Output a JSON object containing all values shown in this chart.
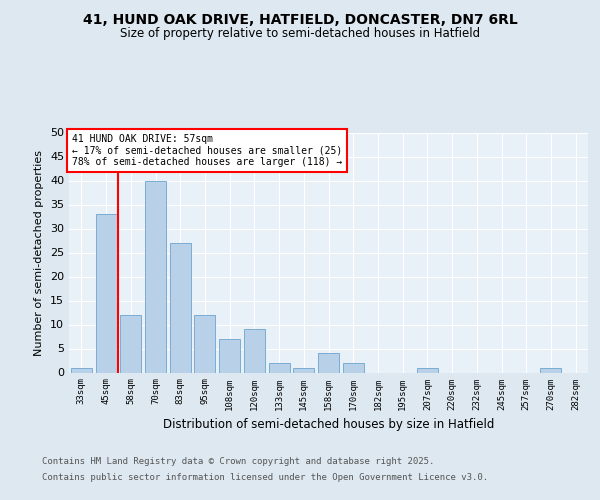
{
  "title_line1": "41, HUND OAK DRIVE, HATFIELD, DONCASTER, DN7 6RL",
  "title_line2": "Size of property relative to semi-detached houses in Hatfield",
  "xlabel": "Distribution of semi-detached houses by size in Hatfield",
  "ylabel": "Number of semi-detached properties",
  "categories": [
    "33sqm",
    "45sqm",
    "58sqm",
    "70sqm",
    "83sqm",
    "95sqm",
    "108sqm",
    "120sqm",
    "133sqm",
    "145sqm",
    "158sqm",
    "170sqm",
    "182sqm",
    "195sqm",
    "207sqm",
    "220sqm",
    "232sqm",
    "245sqm",
    "257sqm",
    "270sqm",
    "282sqm"
  ],
  "values": [
    1,
    33,
    12,
    40,
    27,
    12,
    7,
    9,
    2,
    1,
    4,
    2,
    0,
    0,
    1,
    0,
    0,
    0,
    0,
    1,
    0
  ],
  "bar_color": "#b8d0e8",
  "bar_edge_color": "#7aadd4",
  "annotation_text_line1": "41 HUND OAK DRIVE: 57sqm",
  "annotation_text_line2": "← 17% of semi-detached houses are smaller (25)",
  "annotation_text_line3": "78% of semi-detached houses are larger (118) →",
  "ylim": [
    0,
    50
  ],
  "yticks": [
    0,
    5,
    10,
    15,
    20,
    25,
    30,
    35,
    40,
    45,
    50
  ],
  "footnote_line1": "Contains HM Land Registry data © Crown copyright and database right 2025.",
  "footnote_line2": "Contains public sector information licensed under the Open Government Licence v3.0.",
  "bg_color": "#dde8f0",
  "plot_bg_color": "#e8f0f8"
}
